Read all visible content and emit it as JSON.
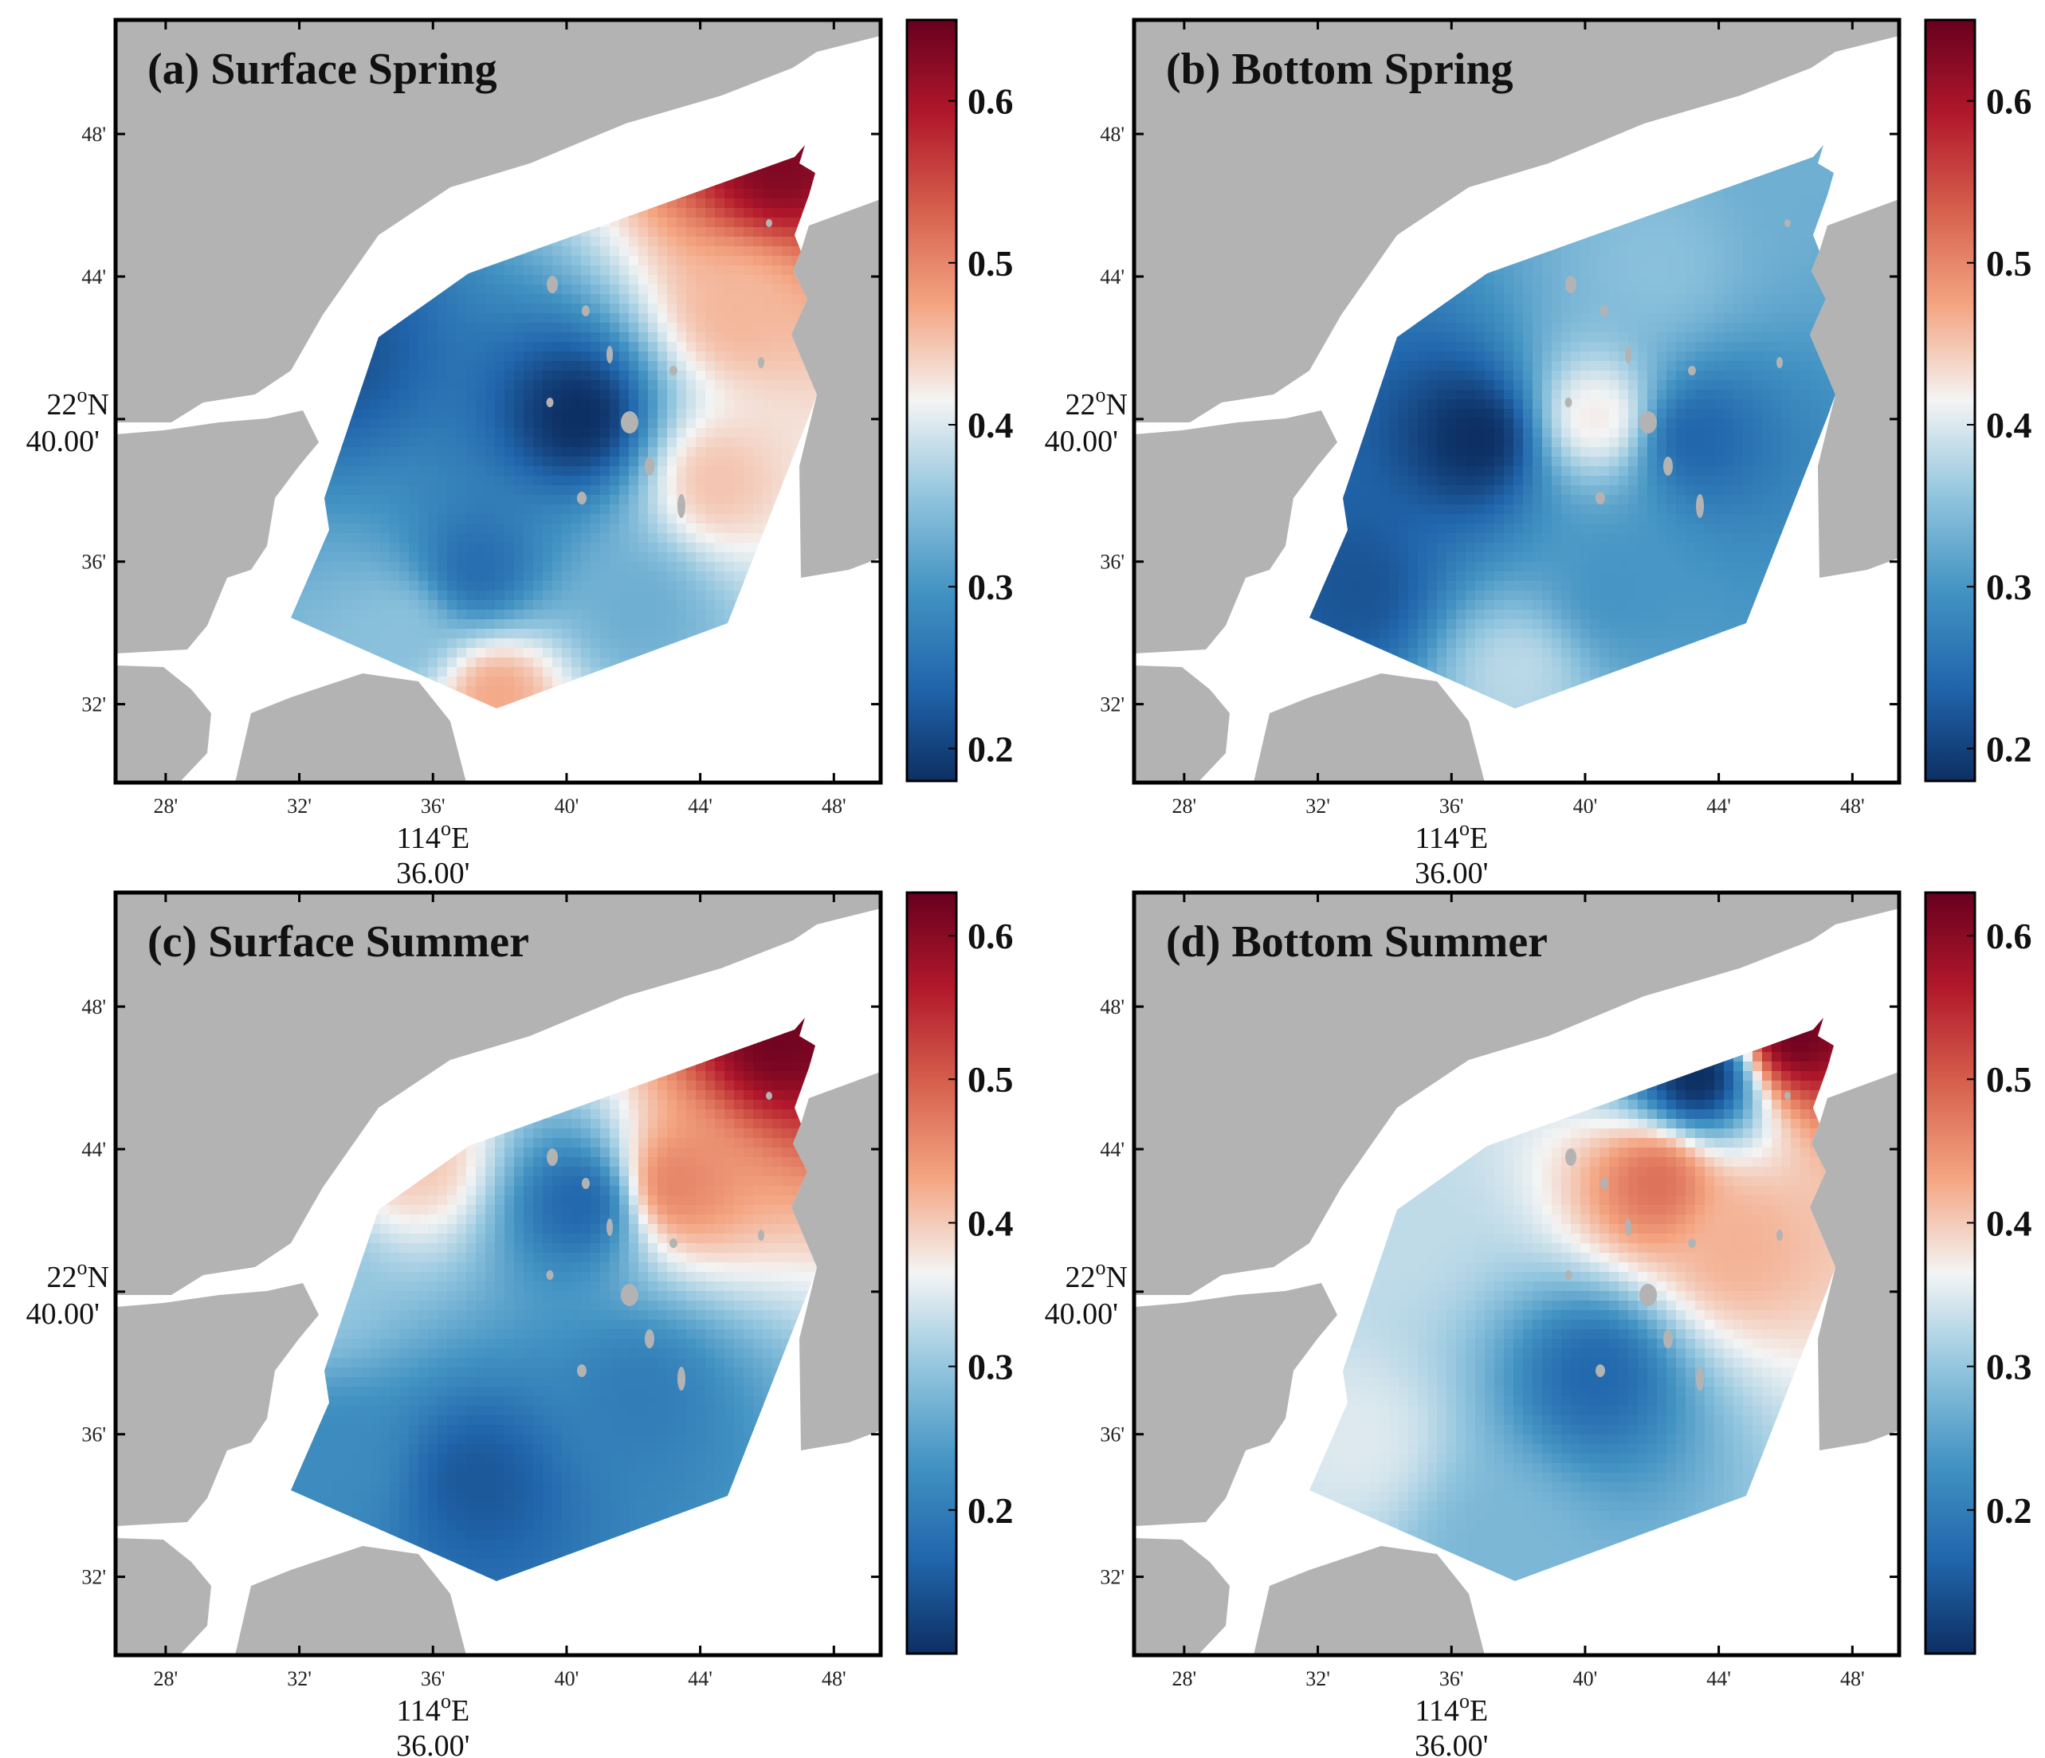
{
  "figure": {
    "colors": {
      "land": "#b3b3b3",
      "water": "#ffffff",
      "frame": "#000000",
      "colormap": [
        "#0d2f63",
        "#2166ac",
        "#4393c3",
        "#92c5de",
        "#f4f4f4",
        "#f4a582",
        "#d6604d",
        "#b2182b",
        "#67001f"
      ]
    },
    "panels": [
      {
        "id": "a",
        "title": "(a) Surface Spring",
        "x_ticks": [
          "28'",
          "32'",
          "36'",
          "40'",
          "44'",
          "48'"
        ],
        "y_ticks": [
          "48'",
          "44'",
          "40'",
          "36'",
          "32'"
        ],
        "xlabel_line1": "114",
        "xlabel_sup": "o",
        "xlabel_line1_suffix": "E",
        "xlabel_line2": "36.00'",
        "ylabel_line1": "22",
        "ylabel_sup": "o",
        "ylabel_line1_suffix": "N",
        "ylabel_line2": "40.00'",
        "colorbar": {
          "labels": [
            "0.6",
            "0.5",
            "0.4",
            "0.3",
            "0.2"
          ],
          "min": 0.18,
          "max": 0.65
        },
        "pattern": [
          {
            "x": 114.67,
            "y": 22.67,
            "v": 0.18
          },
          {
            "x": 114.55,
            "y": 22.7,
            "v": 0.22
          },
          {
            "x": 114.62,
            "y": 22.6,
            "v": 0.25
          },
          {
            "x": 114.75,
            "y": 22.72,
            "v": 0.46
          },
          {
            "x": 114.74,
            "y": 22.64,
            "v": 0.45
          },
          {
            "x": 114.77,
            "y": 22.79,
            "v": 0.63
          },
          {
            "x": 114.63,
            "y": 22.54,
            "v": 0.47
          },
          {
            "x": 114.7,
            "y": 22.58,
            "v": 0.33
          },
          {
            "x": 114.58,
            "y": 22.57,
            "v": 0.35
          }
        ]
      },
      {
        "id": "b",
        "title": "(b) Bottom Spring",
        "x_ticks": [
          "28'",
          "32'",
          "36'",
          "40'",
          "44'",
          "48'"
        ],
        "y_ticks": [
          "48'",
          "44'",
          "40'",
          "36'",
          "32'"
        ],
        "xlabel_line1": "114",
        "xlabel_sup": "o",
        "xlabel_line1_suffix": "E",
        "xlabel_line2": "36.00'",
        "ylabel_line1": "22",
        "ylabel_sup": "o",
        "ylabel_line1_suffix": "N",
        "ylabel_line2": "40.00'",
        "colorbar": {
          "labels": [
            "0.6",
            "0.5",
            "0.4",
            "0.3",
            "0.2"
          ],
          "min": 0.18,
          "max": 0.65
        },
        "pattern": [
          {
            "x": 114.61,
            "y": 22.66,
            "v": 0.18
          },
          {
            "x": 114.67,
            "y": 22.67,
            "v": 0.42
          },
          {
            "x": 114.72,
            "y": 22.66,
            "v": 0.24
          },
          {
            "x": 114.55,
            "y": 22.59,
            "v": 0.22
          },
          {
            "x": 114.63,
            "y": 22.55,
            "v": 0.38
          },
          {
            "x": 114.7,
            "y": 22.74,
            "v": 0.35
          },
          {
            "x": 114.77,
            "y": 22.79,
            "v": 0.33
          },
          {
            "x": 114.68,
            "y": 22.59,
            "v": 0.3
          }
        ]
      },
      {
        "id": "c",
        "title": "(c) Surface Summer",
        "x_ticks": [
          "28'",
          "32'",
          "36'",
          "40'",
          "44'",
          "48'"
        ],
        "y_ticks": [
          "48'",
          "44'",
          "40'",
          "36'",
          "32'"
        ],
        "xlabel_line1": "114",
        "xlabel_sup": "o",
        "xlabel_line1_suffix": "E",
        "xlabel_line2": "36.00'",
        "ylabel_line1": "22",
        "ylabel_sup": "o",
        "ylabel_line1_suffix": "N",
        "ylabel_line2": "40.00'",
        "colorbar": {
          "labels": [
            "0.6",
            "0.5",
            "0.4",
            "0.3",
            "0.2"
          ],
          "min": 0.1,
          "max": 0.63
        },
        "pattern": [
          {
            "x": 114.77,
            "y": 22.79,
            "v": 0.62
          },
          {
            "x": 114.72,
            "y": 22.72,
            "v": 0.46
          },
          {
            "x": 114.59,
            "y": 22.73,
            "v": 0.4
          },
          {
            "x": 114.67,
            "y": 22.71,
            "v": 0.17
          },
          {
            "x": 114.54,
            "y": 22.67,
            "v": 0.3
          },
          {
            "x": 114.62,
            "y": 22.58,
            "v": 0.15
          },
          {
            "x": 114.7,
            "y": 22.62,
            "v": 0.2
          },
          {
            "x": 114.55,
            "y": 22.59,
            "v": 0.22
          }
        ]
      },
      {
        "id": "d",
        "title": "(d) Bottom Summer",
        "x_ticks": [
          "28'",
          "32'",
          "36'",
          "40'",
          "44'",
          "48'"
        ],
        "y_ticks": [
          "48'",
          "44'",
          "40'",
          "36'",
          "32'"
        ],
        "xlabel_line1": "114",
        "xlabel_sup": "o",
        "xlabel_line1_suffix": "E",
        "xlabel_line2": "36.00'",
        "ylabel_line1": "22",
        "ylabel_sup": "o",
        "ylabel_line1_suffix": "N",
        "ylabel_line2": "40.00'",
        "colorbar": {
          "labels": [
            "0.6",
            "0.5",
            "0.4",
            "0.3",
            "0.2"
          ],
          "min": 0.1,
          "max": 0.63
        },
        "pattern": [
          {
            "x": 114.77,
            "y": 22.79,
            "v": 0.62
          },
          {
            "x": 114.72,
            "y": 22.77,
            "v": 0.1
          },
          {
            "x": 114.7,
            "y": 22.72,
            "v": 0.48
          },
          {
            "x": 114.74,
            "y": 22.69,
            "v": 0.42
          },
          {
            "x": 114.67,
            "y": 22.63,
            "v": 0.17
          },
          {
            "x": 114.55,
            "y": 22.6,
            "v": 0.35
          },
          {
            "x": 114.62,
            "y": 22.55,
            "v": 0.28
          },
          {
            "x": 114.57,
            "y": 22.7,
            "v": 0.33
          }
        ]
      }
    ]
  }
}
